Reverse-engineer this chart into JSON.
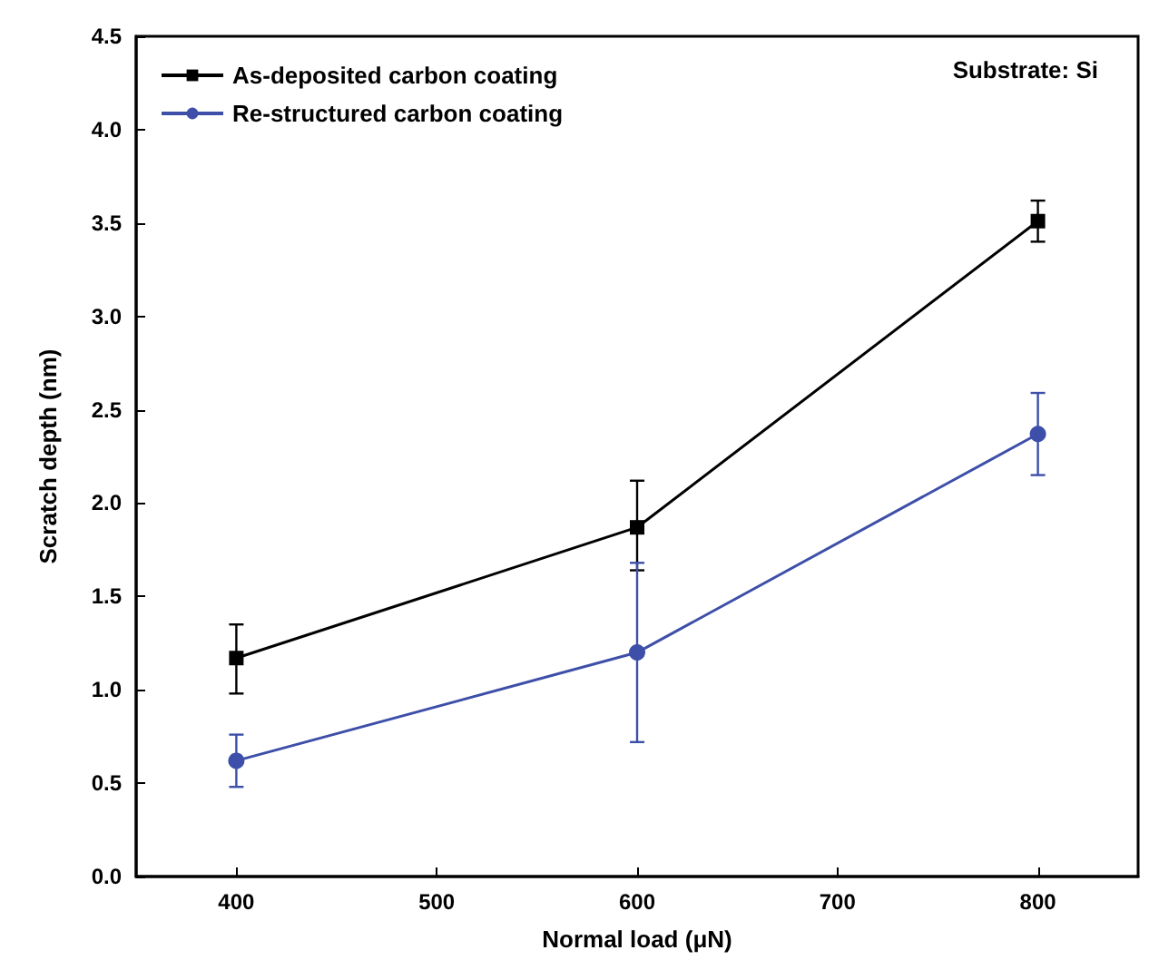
{
  "chart_data": {
    "type": "line",
    "xlabel": "Normal load (μN)",
    "ylabel": "Scratch depth (nm)",
    "x": [
      400,
      600,
      800
    ],
    "series": [
      {
        "name": "As-deposited carbon coating",
        "color": "#000000",
        "marker": "square",
        "values": [
          1.17,
          1.87,
          3.51
        ],
        "errors": [
          [
            0.98,
            1.35
          ],
          [
            1.64,
            2.12
          ],
          [
            3.4,
            3.62
          ]
        ]
      },
      {
        "name": "Re-structured carbon coating",
        "color": "#3d4fa8",
        "marker": "circle",
        "values": [
          0.62,
          1.2,
          2.37
        ],
        "errors": [
          [
            0.48,
            0.76
          ],
          [
            0.72,
            1.68
          ],
          [
            2.15,
            2.59
          ]
        ]
      }
    ],
    "annotations": [
      "Substrate: Si"
    ],
    "xlim": [
      350,
      850
    ],
    "xticks": [
      400,
      500,
      600,
      700,
      800
    ],
    "ylim": [
      0,
      4.5
    ],
    "yticks": [
      {
        "value": 0,
        "label": "0.0"
      },
      0.5,
      {
        "value": 1,
        "label": "1.0"
      },
      1.5,
      {
        "value": 2,
        "label": "2.0"
      },
      2.5,
      {
        "value": 3,
        "label": "3.0"
      },
      3.5,
      {
        "value": 4,
        "label": "4.0"
      },
      4.5
    ],
    "grid": false,
    "legend": "top left",
    "line_style": "solid"
  }
}
